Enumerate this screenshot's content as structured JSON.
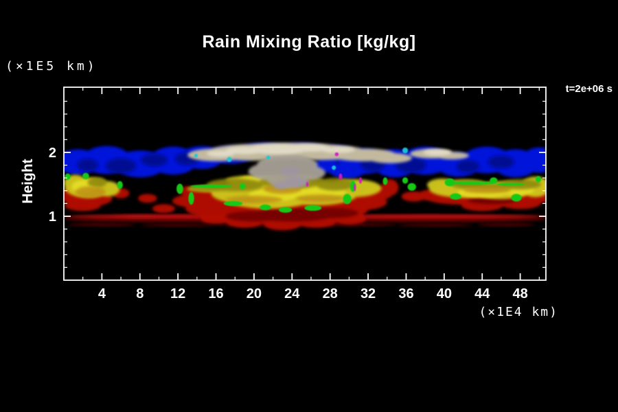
{
  "header": {
    "title": "Rain Mixing Ratio [kg/kg]",
    "y_axis_unit": "(×1E5 km)",
    "time_stamp": "t=2e+06 s"
  },
  "axes": {
    "y_label": "Height",
    "x_unit": "(×1E4 km)"
  },
  "colors": {
    "background": "#000000",
    "frame": "#ffffff",
    "text": "#ffffff"
  },
  "chart_data": {
    "type": "heatmap",
    "title": "Rain Mixing Ratio [kg/kg]",
    "xlabel": "(×1E4 km)",
    "ylabel": "Height (×1E5 km)",
    "annotation": "t=2e+06 s",
    "grid": false,
    "xlim": [
      0,
      50.7
    ],
    "ylim": [
      0,
      3.02
    ],
    "x_ticks_major": [
      4,
      8,
      12,
      16,
      20,
      24,
      28,
      32,
      36,
      40,
      44,
      48
    ],
    "x_ticks_minor": [
      2,
      6,
      10,
      14,
      18,
      22,
      26,
      30,
      34,
      38,
      42,
      46,
      50
    ],
    "y_ticks_major": [
      1,
      2
    ],
    "y_ticks_minor": [
      0.2,
      0.4,
      0.6,
      0.8,
      1.2,
      1.4,
      1.6,
      1.8,
      2.2,
      2.4,
      2.6,
      2.8
    ],
    "layers": [
      {
        "name": "blue-upper-band",
        "color": "#0014e6",
        "opacity": 0.95,
        "blur": "soft",
        "blobs": [
          [
            1.5,
            1.85,
            2.2,
            0.2
          ],
          [
            4.5,
            1.88,
            2.6,
            0.22
          ],
          [
            8,
            1.82,
            2.8,
            0.21
          ],
          [
            11.5,
            1.87,
            2.5,
            0.22
          ],
          [
            14.5,
            1.92,
            2.3,
            0.18
          ],
          [
            17.5,
            1.96,
            2.4,
            0.14
          ],
          [
            21,
            2.04,
            2.6,
            0.11
          ],
          [
            25,
            2.05,
            2.6,
            0.1
          ],
          [
            28.5,
            1.98,
            2.3,
            0.13
          ],
          [
            31.5,
            1.86,
            2.6,
            0.2
          ],
          [
            34.8,
            1.83,
            2.3,
            0.22
          ],
          [
            38,
            1.87,
            2.6,
            0.22
          ],
          [
            41.5,
            1.81,
            2.3,
            0.19
          ],
          [
            44.5,
            1.88,
            2.6,
            0.21
          ],
          [
            47.5,
            1.83,
            2.4,
            0.22
          ],
          [
            50,
            1.88,
            1.8,
            0.2
          ],
          [
            29.8,
            1.72,
            1.9,
            0.13
          ],
          [
            27.5,
            1.78,
            1.4,
            0.1
          ]
        ]
      },
      {
        "name": "blue-dark-patches",
        "color": "#000d8c",
        "opacity": 0.9,
        "blur": "soft",
        "blobs": [
          [
            6,
            1.79,
            1.6,
            0.12
          ],
          [
            13,
            1.9,
            1.3,
            0.1
          ],
          [
            19,
            1.95,
            1.2,
            0.08
          ],
          [
            36.5,
            1.8,
            1.6,
            0.12
          ],
          [
            46,
            1.85,
            1.4,
            0.1
          ],
          [
            26,
            1.98,
            1.6,
            0.07
          ],
          [
            42.5,
            1.78,
            1.2,
            0.1
          ],
          [
            9.5,
            1.88,
            1.4,
            0.1
          ],
          [
            32.5,
            1.82,
            1.3,
            0.12
          ],
          [
            2.5,
            1.8,
            1.1,
            0.1
          ]
        ]
      },
      {
        "name": "surface-stripe-dark",
        "color": "#6e0202",
        "opacity": 1,
        "blur": "soft",
        "blobs": [
          [
            12.7,
            0.96,
            12.7,
            0.05
          ],
          [
            38.1,
            0.96,
            12.7,
            0.05
          ]
        ]
      },
      {
        "name": "surface-stripe-core",
        "color": "#c81414",
        "opacity": 1,
        "blur": "soft",
        "blobs": [
          [
            12.7,
            1.0,
            12.6,
            0.026
          ],
          [
            38.1,
            1.0,
            12.6,
            0.026
          ],
          [
            22,
            1.0,
            6,
            0.03
          ],
          [
            8,
            1.0,
            4,
            0.028
          ]
        ]
      },
      {
        "name": "surface-stripe-fragments",
        "color": "#4f0101",
        "opacity": 1,
        "blur": "soft",
        "blobs": [
          [
            4,
            0.87,
            3.5,
            0.025
          ],
          [
            12,
            0.86,
            4,
            0.022
          ],
          [
            21,
            0.87,
            5,
            0.025
          ],
          [
            30,
            0.87,
            5,
            0.025
          ],
          [
            39,
            0.86,
            4,
            0.022
          ],
          [
            46.5,
            0.87,
            3,
            0.025
          ]
        ]
      },
      {
        "name": "red-rain-mass",
        "color": "#b40a06",
        "opacity": 0.97,
        "blur": "soft",
        "blobs": [
          [
            2.5,
            1.28,
            2.6,
            0.13
          ],
          [
            0.8,
            1.36,
            0.9,
            0.1
          ],
          [
            6.0,
            1.36,
            0.9,
            0.08
          ],
          [
            2.0,
            1.17,
            1.9,
            0.09
          ],
          [
            8.8,
            1.28,
            1.0,
            0.07
          ],
          [
            10.5,
            1.12,
            1.2,
            0.07
          ],
          [
            16,
            1.38,
            3.0,
            0.06
          ],
          [
            13,
            1.4,
            0.9,
            0.07
          ],
          [
            17,
            1.12,
            4.2,
            0.16
          ],
          [
            22,
            1.06,
            6.0,
            0.18
          ],
          [
            27,
            1.1,
            5.0,
            0.16
          ],
          [
            31,
            1.22,
            3.0,
            0.13
          ],
          [
            14,
            1.24,
            2.6,
            0.11
          ],
          [
            19,
            0.92,
            2.0,
            0.1
          ],
          [
            23,
            0.88,
            2.0,
            0.1
          ],
          [
            26.5,
            0.92,
            2.2,
            0.1
          ],
          [
            30,
            0.96,
            1.8,
            0.09
          ],
          [
            16,
            0.96,
            1.6,
            0.08
          ],
          [
            33,
            1.36,
            1.6,
            0.11
          ],
          [
            29.3,
            1.47,
            0.7,
            0.1
          ],
          [
            34.3,
            1.45,
            0.9,
            0.13
          ],
          [
            36.8,
            1.31,
            1.3,
            0.08
          ],
          [
            38.8,
            1.33,
            1.6,
            0.09
          ],
          [
            42,
            1.29,
            4.0,
            0.11
          ],
          [
            47,
            1.31,
            3.2,
            0.11
          ],
          [
            50.2,
            1.37,
            1.2,
            0.16
          ],
          [
            44,
            1.17,
            2.2,
            0.09
          ],
          [
            48,
            1.21,
            2.2,
            0.1
          ],
          [
            40.5,
            1.42,
            1.5,
            0.09
          ]
        ]
      },
      {
        "name": "red-dark-shading",
        "color": "#700303",
        "opacity": 0.9,
        "blur": "soft",
        "blobs": [
          [
            24,
            1.02,
            4.5,
            0.1
          ],
          [
            20,
            1.0,
            3.0,
            0.08
          ],
          [
            28,
            1.05,
            3.0,
            0.08
          ],
          [
            45,
            1.25,
            2.5,
            0.06
          ]
        ]
      },
      {
        "name": "yellow-mid-band",
        "color": "#cfc61a",
        "opacity": 0.97,
        "blur": "soft",
        "blobs": [
          [
            2.5,
            1.45,
            2.4,
            0.16
          ],
          [
            4.6,
            1.43,
            1.3,
            0.12
          ],
          [
            1.2,
            1.52,
            1.2,
            0.13
          ],
          [
            16.5,
            1.43,
            3.5,
            0.055
          ],
          [
            18.5,
            1.36,
            3.0,
            0.15
          ],
          [
            21.5,
            1.31,
            5.0,
            0.19
          ],
          [
            26.5,
            1.36,
            4.5,
            0.19
          ],
          [
            30.5,
            1.44,
            2.9,
            0.14
          ],
          [
            20,
            1.56,
            3.0,
            0.08
          ],
          [
            42,
            1.43,
            3.6,
            0.14
          ],
          [
            46,
            1.41,
            3.3,
            0.14
          ],
          [
            49.6,
            1.46,
            1.6,
            0.16
          ],
          [
            39.8,
            1.49,
            1.6,
            0.1
          ]
        ]
      },
      {
        "name": "yellow-bright-cores",
        "color": "#e5dd25",
        "opacity": 0.95,
        "blur": "soft",
        "blobs": [
          [
            2.2,
            1.47,
            1.4,
            0.1
          ],
          [
            26.5,
            1.39,
            3.2,
            0.11
          ],
          [
            22,
            1.33,
            2.6,
            0.1
          ],
          [
            44,
            1.37,
            2.6,
            0.08
          ],
          [
            47.5,
            1.42,
            2.0,
            0.09
          ],
          [
            20.5,
            1.58,
            2.0,
            0.05
          ]
        ]
      },
      {
        "name": "olive-shading",
        "color": "#8f890f",
        "opacity": 0.9,
        "blur": "soft",
        "blobs": [
          [
            18,
            1.49,
            3.0,
            0.1
          ],
          [
            24,
            1.55,
            3.4,
            0.12
          ],
          [
            28.5,
            1.5,
            2.0,
            0.1
          ],
          [
            48,
            1.5,
            2.2,
            0.08
          ],
          [
            42.5,
            1.5,
            1.8,
            0.07
          ],
          [
            3.5,
            1.53,
            1.0,
            0.08
          ],
          [
            15.5,
            1.43,
            2.5,
            0.04
          ],
          [
            45,
            1.46,
            3.0,
            0.05
          ]
        ]
      },
      {
        "name": "orange-tints",
        "color": "#bd9013",
        "opacity": 0.85,
        "blur": "soft",
        "blobs": [
          [
            2.8,
            1.38,
            1.6,
            0.09
          ],
          [
            20,
            1.26,
            3.0,
            0.06
          ],
          [
            27,
            1.28,
            2.5,
            0.06
          ],
          [
            44.5,
            1.41,
            2.5,
            0.05
          ],
          [
            23,
            1.43,
            2.0,
            0.08
          ]
        ]
      },
      {
        "name": "green-specks",
        "color": "#16c916",
        "opacity": 1,
        "blur": "speck",
        "blobs": [
          [
            0.4,
            1.62,
            0.3,
            0.05
          ],
          [
            2.3,
            1.63,
            0.35,
            0.05
          ],
          [
            5.9,
            1.49,
            0.3,
            0.06
          ],
          [
            12.2,
            1.43,
            0.35,
            0.08
          ],
          [
            13.4,
            1.28,
            0.3,
            0.1
          ],
          [
            18.8,
            1.47,
            0.3,
            0.05
          ],
          [
            15.5,
            1.47,
            2.2,
            0.025
          ],
          [
            21.2,
            1.14,
            0.6,
            0.045
          ],
          [
            23.3,
            1.1,
            0.7,
            0.045
          ],
          [
            26.2,
            1.13,
            0.9,
            0.045
          ],
          [
            17.8,
            1.2,
            1.0,
            0.04
          ],
          [
            29.8,
            1.27,
            0.45,
            0.08
          ],
          [
            30.4,
            1.47,
            0.3,
            0.09
          ],
          [
            33.8,
            1.55,
            0.25,
            0.06
          ],
          [
            36.6,
            1.46,
            0.45,
            0.06
          ],
          [
            40.6,
            1.53,
            0.55,
            0.06
          ],
          [
            45.2,
            1.56,
            0.4,
            0.05
          ],
          [
            47.6,
            1.29,
            0.55,
            0.06
          ],
          [
            41.2,
            1.31,
            0.6,
            0.05
          ],
          [
            49.9,
            1.58,
            0.3,
            0.05
          ],
          [
            35.9,
            1.56,
            0.3,
            0.05
          ],
          [
            43,
            1.52,
            2.5,
            0.025
          ],
          [
            47,
            1.5,
            1.5,
            0.02
          ]
        ]
      },
      {
        "name": "anvil-tan-cloud",
        "color": "#c9bf9e",
        "opacity": 0.97,
        "blur": "soft",
        "blobs": [
          [
            23.5,
            2.02,
            7.5,
            0.13
          ],
          [
            20,
            2.0,
            5.0,
            0.13
          ],
          [
            27,
            2.0,
            5.0,
            0.12
          ],
          [
            16,
            1.96,
            3.0,
            0.1
          ],
          [
            31.5,
            1.96,
            3.5,
            0.1
          ],
          [
            34.3,
            1.91,
            2.3,
            0.08
          ],
          [
            38.7,
            1.98,
            2.3,
            0.075
          ],
          [
            40.8,
            1.95,
            1.8,
            0.06
          ]
        ]
      },
      {
        "name": "anvil-grey-stem",
        "color": "#a7a196",
        "opacity": 0.95,
        "blur": "soft",
        "blobs": [
          [
            23.5,
            1.8,
            3.2,
            0.17
          ],
          [
            23.5,
            1.6,
            2.2,
            0.16
          ],
          [
            22,
            1.7,
            2.6,
            0.14
          ],
          [
            25.5,
            1.68,
            2.0,
            0.12
          ]
        ]
      },
      {
        "name": "anvil-violet-tint",
        "color": "#9e94a6",
        "opacity": 0.8,
        "blur": "soft",
        "blobs": [
          [
            24.5,
            1.53,
            1.3,
            0.08
          ],
          [
            22.8,
            1.48,
            0.8,
            0.06
          ],
          [
            23.8,
            1.7,
            1.0,
            0.07
          ]
        ]
      },
      {
        "name": "anvil-highlights",
        "color": "#e4deca",
        "opacity": 0.9,
        "blur": "soft",
        "blobs": [
          [
            22.5,
            2.05,
            3.2,
            0.08
          ],
          [
            25.8,
            2.07,
            2.2,
            0.06
          ],
          [
            19,
            2.03,
            2.0,
            0.06
          ],
          [
            39.3,
            2.0,
            1.5,
            0.05
          ],
          [
            28.8,
            2.04,
            1.8,
            0.05
          ],
          [
            16.5,
            1.98,
            1.5,
            0.05
          ]
        ]
      },
      {
        "name": "magenta-noise",
        "color": "#d818c4",
        "opacity": 0.95,
        "blur": "speck",
        "blobs": [
          [
            29.1,
            1.62,
            0.18,
            0.05
          ],
          [
            31.2,
            1.56,
            0.15,
            0.05
          ],
          [
            25.6,
            1.5,
            0.12,
            0.04
          ],
          [
            28.7,
            1.97,
            0.2,
            0.03
          ],
          [
            30.6,
            1.45,
            0.12,
            0.06
          ]
        ]
      },
      {
        "name": "cyan-noise",
        "color": "#1ac8da",
        "opacity": 0.95,
        "blur": "speck",
        "blobs": [
          [
            28.4,
            1.76,
            0.22,
            0.035
          ],
          [
            17.4,
            1.89,
            0.25,
            0.04
          ],
          [
            35.9,
            2.03,
            0.3,
            0.045
          ],
          [
            21.5,
            1.92,
            0.2,
            0.03
          ],
          [
            13.9,
            1.95,
            0.2,
            0.03
          ]
        ]
      }
    ]
  }
}
